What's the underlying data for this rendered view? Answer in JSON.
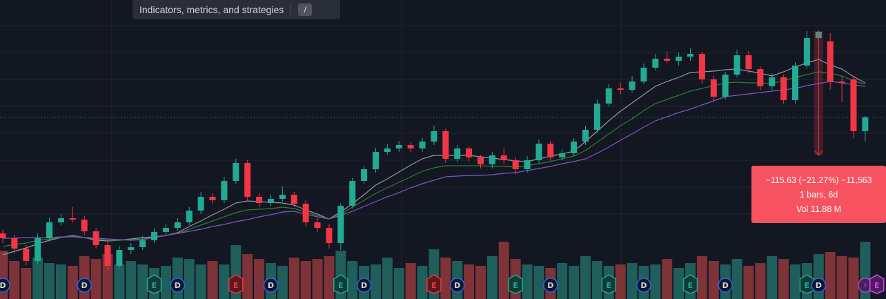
{
  "toolbar": {
    "button": "Indicators, metrics, and strategies",
    "shortcut": "/"
  },
  "chart_data": {
    "type": "candlestick",
    "ylim": [
      167,
      600
    ],
    "volume_lim": [
      0,
      100
    ],
    "colors": {
      "up": "#22ab94",
      "down": "#f23645",
      "volume_up": "#1f5e5b",
      "volume_down": "#7d3338"
    },
    "candles": [
      [
        262,
        268,
        248,
        255
      ],
      [
        255,
        260,
        233,
        240
      ],
      [
        240,
        245,
        216,
        222
      ],
      [
        222,
        262,
        218,
        255
      ],
      [
        255,
        285,
        250,
        278
      ],
      [
        278,
        290,
        274,
        284
      ],
      [
        284,
        300,
        278,
        282
      ],
      [
        282,
        287,
        260,
        265
      ],
      [
        265,
        270,
        240,
        245
      ],
      [
        245,
        252,
        208,
        215
      ],
      [
        215,
        244,
        212,
        238
      ],
      [
        238,
        248,
        232,
        242
      ],
      [
        242,
        258,
        238,
        252
      ],
      [
        252,
        270,
        248,
        264
      ],
      [
        264,
        276,
        260,
        270
      ],
      [
        270,
        284,
        266,
        278
      ],
      [
        278,
        300,
        274,
        295
      ],
      [
        295,
        322,
        290,
        315
      ],
      [
        315,
        320,
        305,
        310
      ],
      [
        310,
        344,
        306,
        338
      ],
      [
        338,
        370,
        334,
        364
      ],
      [
        364,
        368,
        310,
        315
      ],
      [
        315,
        320,
        300,
        306
      ],
      [
        306,
        318,
        302,
        312
      ],
      [
        312,
        330,
        308,
        318
      ],
      [
        318,
        322,
        300,
        305
      ],
      [
        305,
        310,
        272,
        278
      ],
      [
        278,
        284,
        264,
        270
      ],
      [
        270,
        276,
        240,
        248
      ],
      [
        248,
        306,
        238,
        302
      ],
      [
        302,
        342,
        298,
        338
      ],
      [
        338,
        360,
        334,
        355
      ],
      [
        355,
        386,
        350,
        380
      ],
      [
        380,
        392,
        376,
        385
      ],
      [
        385,
        396,
        380,
        390
      ],
      [
        390,
        394,
        380,
        385
      ],
      [
        385,
        400,
        380,
        395
      ],
      [
        395,
        418,
        390,
        410
      ],
      [
        410,
        414,
        364,
        370
      ],
      [
        370,
        390,
        365,
        385
      ],
      [
        385,
        388,
        366,
        372
      ],
      [
        372,
        376,
        356,
        362
      ],
      [
        362,
        380,
        356,
        375
      ],
      [
        375,
        386,
        362,
        368
      ],
      [
        368,
        372,
        348,
        355
      ],
      [
        355,
        374,
        350,
        368
      ],
      [
        368,
        398,
        364,
        392
      ],
      [
        392,
        396,
        366,
        372
      ],
      [
        372,
        384,
        368,
        378
      ],
      [
        378,
        400,
        374,
        395
      ],
      [
        395,
        418,
        390,
        412
      ],
      [
        412,
        456,
        408,
        450
      ],
      [
        450,
        478,
        446,
        472
      ],
      [
        472,
        480,
        464,
        470
      ],
      [
        470,
        490,
        466,
        482
      ],
      [
        482,
        508,
        478,
        502
      ],
      [
        502,
        522,
        498,
        515
      ],
      [
        515,
        526,
        508,
        512
      ],
      [
        512,
        524,
        505,
        518
      ],
      [
        518,
        530,
        512,
        522
      ],
      [
        522,
        525,
        478,
        485
      ],
      [
        485,
        490,
        454,
        460
      ],
      [
        460,
        496,
        456,
        492
      ],
      [
        492,
        528,
        488,
        520
      ],
      [
        520,
        526,
        494,
        500
      ],
      [
        500,
        504,
        470,
        475
      ],
      [
        475,
        494,
        470,
        488
      ],
      [
        488,
        492,
        450,
        455
      ],
      [
        455,
        510,
        450,
        505
      ],
      [
        505,
        555,
        500,
        545
      ],
      [
        545,
        556,
        538,
        554
      ],
      [
        540,
        552,
        470,
        482
      ],
      [
        482,
        490,
        452,
        480
      ],
      [
        485,
        490,
        400,
        410
      ],
      [
        410,
        432,
        395,
        430
      ]
    ],
    "volume": [
      70,
      55,
      45,
      60,
      52,
      50,
      48,
      62,
      58,
      65,
      50,
      55,
      50,
      45,
      48,
      60,
      58,
      50,
      55,
      50,
      78,
      65,
      58,
      52,
      48,
      60,
      55,
      58,
      62,
      70,
      55,
      48,
      50,
      60,
      45,
      52,
      48,
      72,
      60,
      55,
      50,
      48,
      62,
      83,
      58,
      50,
      48,
      45,
      52,
      48,
      62,
      55,
      48,
      50,
      52,
      48,
      50,
      58,
      45,
      52,
      62,
      55,
      50,
      58,
      48,
      52,
      62,
      58,
      50,
      52,
      65,
      68,
      62,
      60,
      83
    ],
    "moving_averages": [
      {
        "color": "#9598a1",
        "values": [
          231,
          236,
          241,
          247,
          252,
          256,
          259,
          256,
          252,
          251,
          252,
          254,
          256,
          257,
          259,
          263,
          272,
          280,
          289,
          297,
          306,
          309,
          308,
          307,
          306,
          303,
          296,
          290,
          283,
          293,
          305,
          318,
          332,
          341,
          351,
          361,
          370,
          375,
          375,
          375,
          375,
          373,
          371,
          369,
          367,
          366,
          370,
          374,
          377,
          381,
          395,
          410,
          425,
          439,
          451,
          463,
          475,
          482,
          488,
          495,
          496,
          497,
          499,
          500,
          497,
          494,
          490,
          496,
          503,
          509,
          514,
          506,
          500,
          489,
          480
        ]
      },
      {
        "color": "#2e7d32",
        "values": [
          243,
          246,
          248,
          252,
          254,
          256,
          258,
          256,
          254,
          252,
          252,
          253,
          254,
          256,
          259,
          262,
          268,
          274,
          280,
          286,
          292,
          296,
          297,
          298,
          300,
          298,
          293,
          288,
          283,
          290,
          300,
          310,
          320,
          328,
          336,
          344,
          352,
          357,
          360,
          360,
          360,
          360,
          359,
          359,
          358,
          360,
          363,
          366,
          370,
          374,
          382,
          394,
          406,
          418,
          428,
          440,
          450,
          456,
          462,
          468,
          472,
          476,
          480,
          481,
          480,
          480,
          479,
          483,
          488,
          492,
          496,
          494,
          490,
          483,
          478
        ]
      },
      {
        "color": "#7e57c2",
        "values": [
          255,
          255,
          256,
          256,
          256,
          257,
          257,
          256,
          255,
          254,
          253,
          252,
          253,
          256,
          259,
          262,
          265,
          268,
          272,
          275,
          279,
          282,
          286,
          289,
          293,
          294,
          290,
          286,
          283,
          288,
          294,
          301,
          308,
          315,
          321,
          328,
          334,
          339,
          344,
          345,
          346,
          346,
          347,
          349,
          350,
          353,
          356,
          359,
          363,
          366,
          370,
          378,
          387,
          397,
          406,
          416,
          425,
          431,
          437,
          442,
          448,
          454,
          460,
          462,
          464,
          466,
          468,
          470,
          472,
          476,
          479,
          482,
          480,
          477,
          475
        ]
      }
    ],
    "measurement": {
      "from": 555,
      "to": 375,
      "index": 70
    },
    "events": [
      {
        "label": "D",
        "index": 0,
        "color": "#2962ff"
      },
      {
        "label": "D",
        "index": 7,
        "color": "#2962ff"
      },
      {
        "label": "E",
        "index": 13,
        "color": "#22ab94"
      },
      {
        "label": "D",
        "index": 15,
        "color": "#2962ff"
      },
      {
        "label": "E",
        "index": 20,
        "color": "#f23645"
      },
      {
        "label": "D",
        "index": 23,
        "color": "#2962ff"
      },
      {
        "label": "E",
        "index": 29,
        "color": "#22ab94"
      },
      {
        "label": "D",
        "index": 31,
        "color": "#2962ff"
      },
      {
        "label": "E",
        "index": 37,
        "color": "#f23645"
      },
      {
        "label": "D",
        "index": 39,
        "color": "#2962ff"
      },
      {
        "label": "E",
        "index": 44,
        "color": "#22ab94"
      },
      {
        "label": "D",
        "index": 47,
        "color": "#2962ff"
      },
      {
        "label": "E",
        "index": 52,
        "color": "#22ab94"
      },
      {
        "label": "D",
        "index": 55,
        "color": "#2962ff"
      },
      {
        "label": "E",
        "index": 59,
        "color": "#22ab94"
      },
      {
        "label": "D",
        "index": 62,
        "color": "#2962ff"
      },
      {
        "label": "E",
        "index": 69,
        "color": "#22ab94"
      },
      {
        "label": "D",
        "index": 70,
        "color": "#2962ff"
      },
      {
        "label": "⚡",
        "index": 74,
        "color": "#ab47bc"
      },
      {
        "label": "E",
        "index": 75,
        "color": "#e040fb"
      }
    ]
  },
  "tooltip": {
    "lines": [
      "−115.63 (−21.27%) −11,563",
      "1 bars, 6d",
      "Vol 11.88 M"
    ]
  }
}
